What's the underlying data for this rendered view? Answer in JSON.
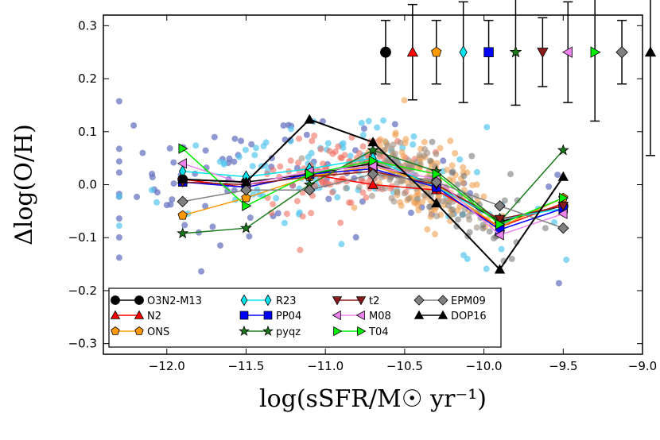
{
  "chart_data": {
    "type": "line",
    "title": "",
    "xlabel": "log(sSFR/M☉ yr⁻¹)",
    "ylabel": "Δlog(O/H)",
    "xlim": [
      -12.4,
      -9.0
    ],
    "ylim": [
      -0.32,
      0.32
    ],
    "x_ticks": [
      -12.0,
      -11.5,
      -11.0,
      -10.5,
      -10.0,
      -9.5,
      -9.0
    ],
    "x_tick_labels": [
      "−12.0",
      "−11.5",
      "−11.0",
      "−10.5",
      "−10.0",
      "−9.5",
      "−9.0"
    ],
    "y_ticks": [
      -0.3,
      -0.2,
      -0.1,
      0.0,
      0.1,
      0.2,
      0.3
    ],
    "y_tick_labels": [
      "−0.3",
      "−0.2",
      "−0.1",
      "0.0",
      "0.1",
      "0.2",
      "0.3"
    ],
    "legend_position": "lower-left",
    "x": [
      -11.9,
      -11.5,
      -11.1,
      -10.7,
      -10.3,
      -9.9,
      -9.5
    ],
    "series": [
      {
        "name": "O3N2-M13",
        "color": "#000000",
        "marker": "circle",
        "values": [
          0.01,
          0.005,
          0.02,
          0.04,
          0.0,
          -0.07,
          -0.04
        ]
      },
      {
        "name": "N2",
        "color": "#ff0000",
        "marker": "triangle-up",
        "values": [
          0.01,
          -0.005,
          0.02,
          0.0,
          -0.01,
          -0.08,
          -0.035
        ]
      },
      {
        "name": "ONS",
        "color": "#ff9900",
        "marker": "pentagon",
        "values": [
          -0.058,
          -0.025,
          0.015,
          0.035,
          0.0,
          -0.08,
          -0.025
        ]
      },
      {
        "name": "R23",
        "color": "#00e5ee",
        "marker": "diamond-thin",
        "values": [
          0.025,
          0.015,
          0.03,
          0.05,
          -0.005,
          -0.065,
          -0.045
        ]
      },
      {
        "name": "PP04",
        "color": "#0000ff",
        "marker": "square",
        "values": [
          0.005,
          -0.005,
          0.02,
          0.03,
          -0.005,
          -0.085,
          -0.045
        ]
      },
      {
        "name": "pyqz",
        "color": "#1a7a1a",
        "marker": "star",
        "values": [
          -0.092,
          -0.082,
          0.0,
          0.065,
          0.025,
          -0.07,
          0.065
        ]
      },
      {
        "name": "t2",
        "color": "#8b1a1a",
        "marker": "triangle-down",
        "values": [
          0.005,
          0.0,
          0.015,
          0.025,
          0.0,
          -0.065,
          -0.04
        ]
      },
      {
        "name": "M08",
        "color": "#ee82ee",
        "marker": "triangle-left",
        "values": [
          0.04,
          0.0,
          0.025,
          0.035,
          0.01,
          -0.095,
          -0.055
        ]
      },
      {
        "name": "T04",
        "color": "#00ee00",
        "marker": "triangle-right",
        "values": [
          0.068,
          -0.04,
          0.02,
          0.045,
          0.02,
          -0.075,
          -0.025
        ]
      },
      {
        "name": "EPM09",
        "color": "#808080",
        "marker": "diamond",
        "values": [
          -0.032,
          -0.01,
          -0.01,
          0.02,
          0.005,
          -0.04,
          -0.082
        ]
      },
      {
        "name": "DOP16",
        "color": "#000000",
        "marker": "triangle-up",
        "values": [
          0.01,
          0.005,
          0.123,
          0.08,
          -0.035,
          -0.16,
          0.015
        ]
      }
    ],
    "error_bars": [
      {
        "name": "O3N2-M13",
        "x": -10.62,
        "y": 0.25,
        "err": 0.06
      },
      {
        "name": "N2",
        "x": -10.45,
        "y": 0.25,
        "err": 0.09
      },
      {
        "name": "ONS",
        "x": -10.3,
        "y": 0.25,
        "err": 0.06
      },
      {
        "name": "R23",
        "x": -10.13,
        "y": 0.25,
        "err": 0.095
      },
      {
        "name": "PP04",
        "x": -9.97,
        "y": 0.25,
        "err": 0.06
      },
      {
        "name": "pyqz",
        "x": -9.8,
        "y": 0.25,
        "err": 0.1
      },
      {
        "name": "t2",
        "x": -9.63,
        "y": 0.25,
        "err": 0.065
      },
      {
        "name": "M08",
        "x": -9.47,
        "y": 0.25,
        "err": 0.095
      },
      {
        "name": "T04",
        "x": -9.3,
        "y": 0.25,
        "err": 0.13
      },
      {
        "name": "EPM09",
        "x": -9.13,
        "y": 0.25,
        "err": 0.06
      },
      {
        "name": "DOP16",
        "x": -8.95,
        "y": 0.25,
        "err": 0.195
      }
    ],
    "scatter_background": {
      "description_colors": [
        "#6a76c2",
        "#55c8f0",
        "#f07060",
        "#f0a050",
        "#a09080",
        "#707070"
      ],
      "note": "individual galaxy residuals shown as translucent dots"
    }
  }
}
